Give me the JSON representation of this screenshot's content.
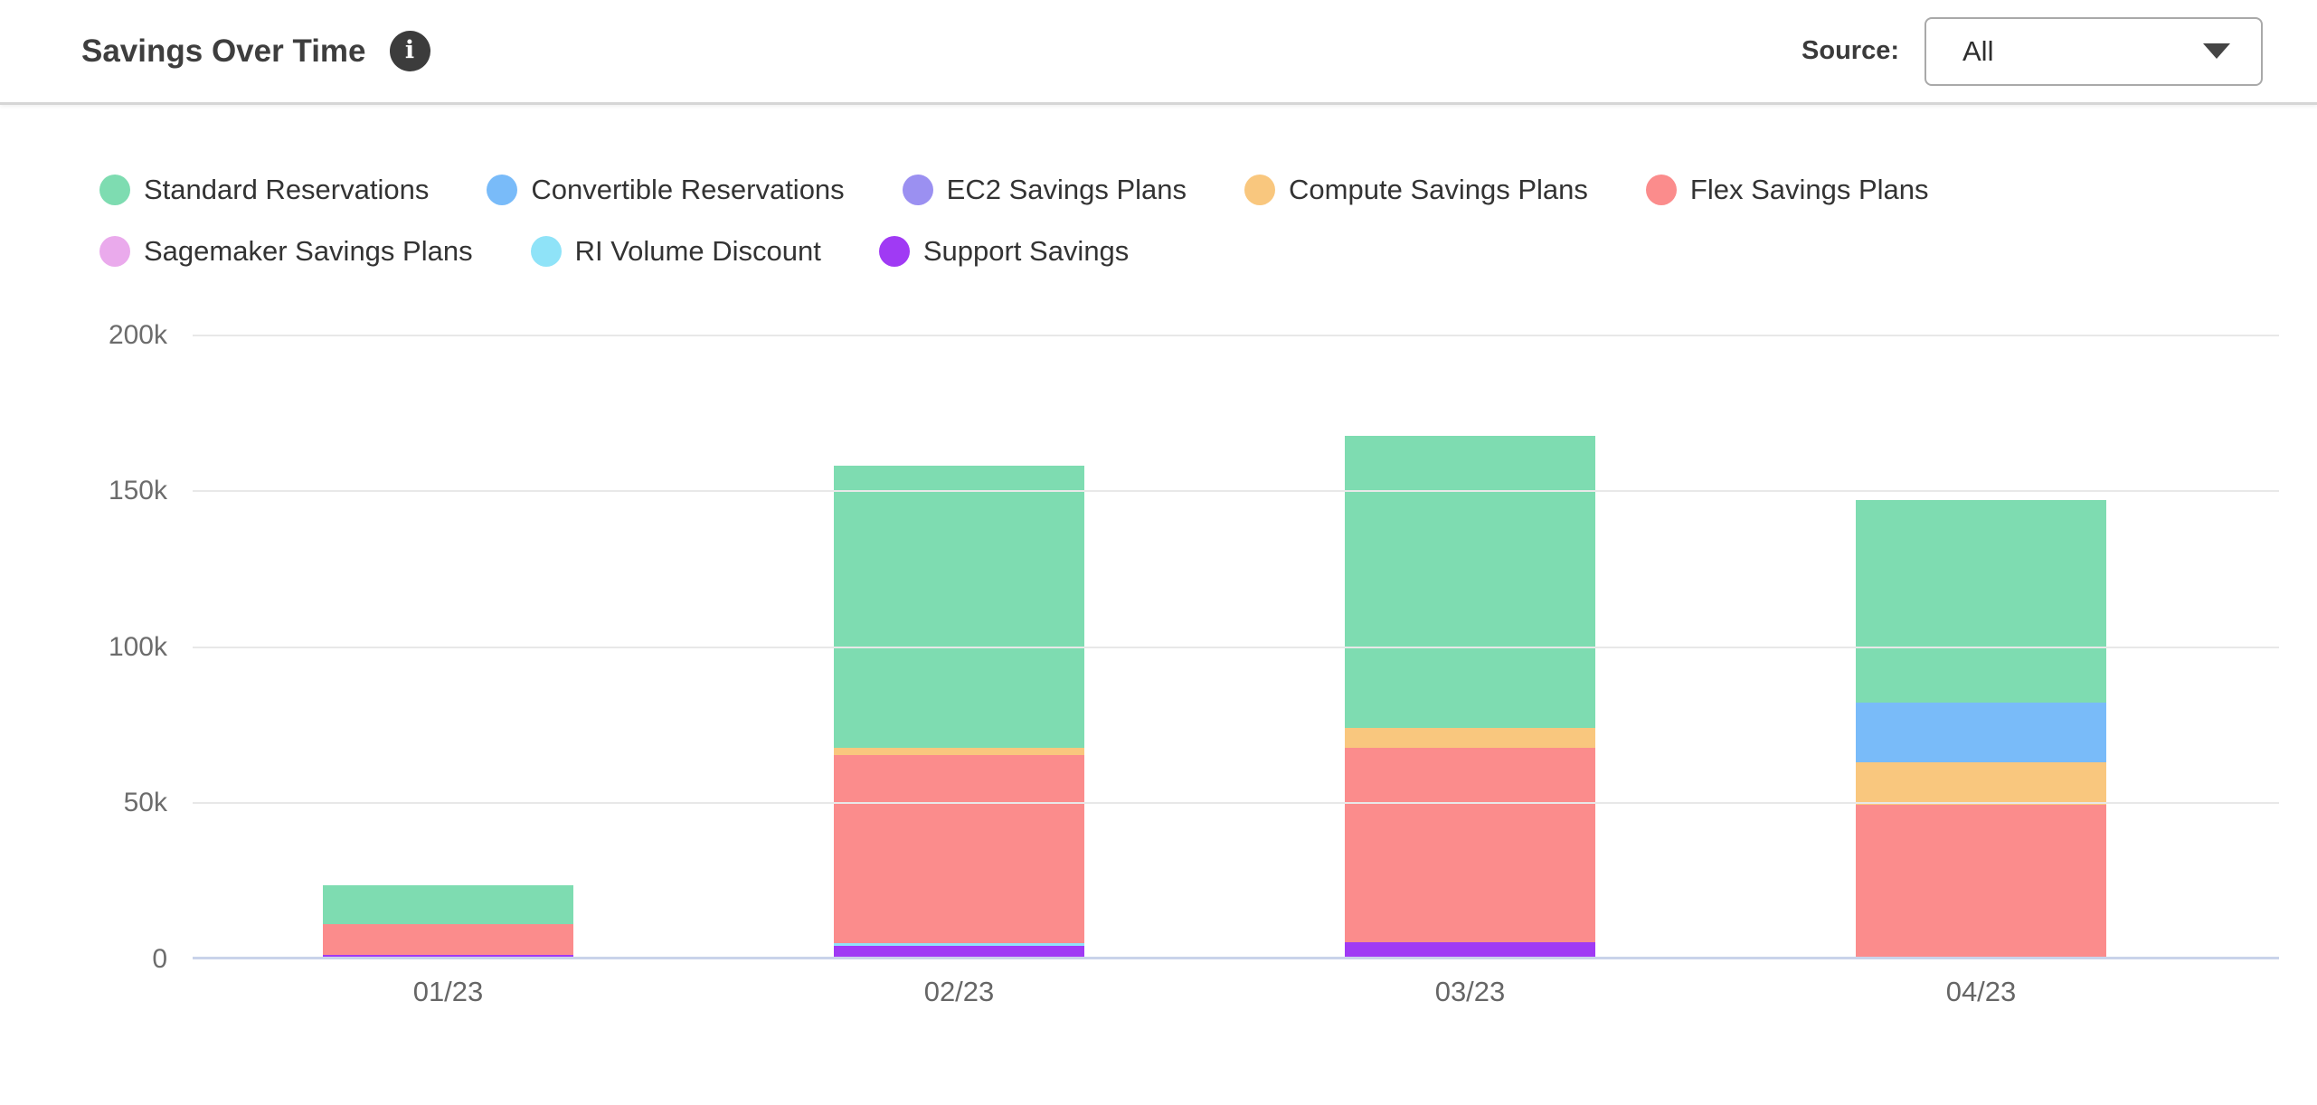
{
  "header": {
    "title": "Savings Over Time",
    "source_label": "Source:",
    "source_value": "All"
  },
  "chart_data": {
    "type": "bar",
    "stacked": true,
    "title": "Savings Over Time",
    "xlabel": "",
    "ylabel": "",
    "categories": [
      "01/23",
      "02/23",
      "03/23",
      "04/23"
    ],
    "series": [
      {
        "name": "Standard Reservations",
        "color": "#7edcb1",
        "values": [
          12300,
          90400,
          93600,
          64900
        ]
      },
      {
        "name": "Convertible Reservations",
        "color": "#79bbf9",
        "values": [
          0,
          0,
          0,
          19100
        ]
      },
      {
        "name": "EC2 Savings Plans",
        "color": "#9b90f1",
        "values": [
          0,
          0,
          0,
          0
        ]
      },
      {
        "name": "Compute Savings Plans",
        "color": "#f9c77e",
        "values": [
          0,
          2300,
          6400,
          13600
        ]
      },
      {
        "name": "Flex Savings Plans",
        "color": "#fb8c8c",
        "values": [
          9900,
          60300,
          62300,
          49600
        ]
      },
      {
        "name": "Sagemaker Savings Plans",
        "color": "#eaaaec",
        "values": [
          0,
          0,
          0,
          0
        ]
      },
      {
        "name": "RI Volume Discount",
        "color": "#8fe3f8",
        "values": [
          0,
          900,
          0,
          0
        ]
      },
      {
        "name": "Support Savings",
        "color": "#a03af4",
        "values": [
          1400,
          4300,
          5500,
          0
        ]
      }
    ],
    "ylim": [
      0,
      200000
    ],
    "yticks": [
      {
        "value": 0,
        "label": "0"
      },
      {
        "value": 50000,
        "label": "50k"
      },
      {
        "value": 100000,
        "label": "100k"
      },
      {
        "value": 150000,
        "label": "150k"
      },
      {
        "value": 200000,
        "label": "200k"
      }
    ],
    "grid": true,
    "legend_position": "top",
    "legend_row_break_after_index": 4
  },
  "colors": {
    "grid": "#e8e8e8",
    "axis_baseline": "#c9d3ea",
    "title_text": "#3e3e3e",
    "legend_text": "#333333",
    "tick_text": "#6c6c6c"
  }
}
